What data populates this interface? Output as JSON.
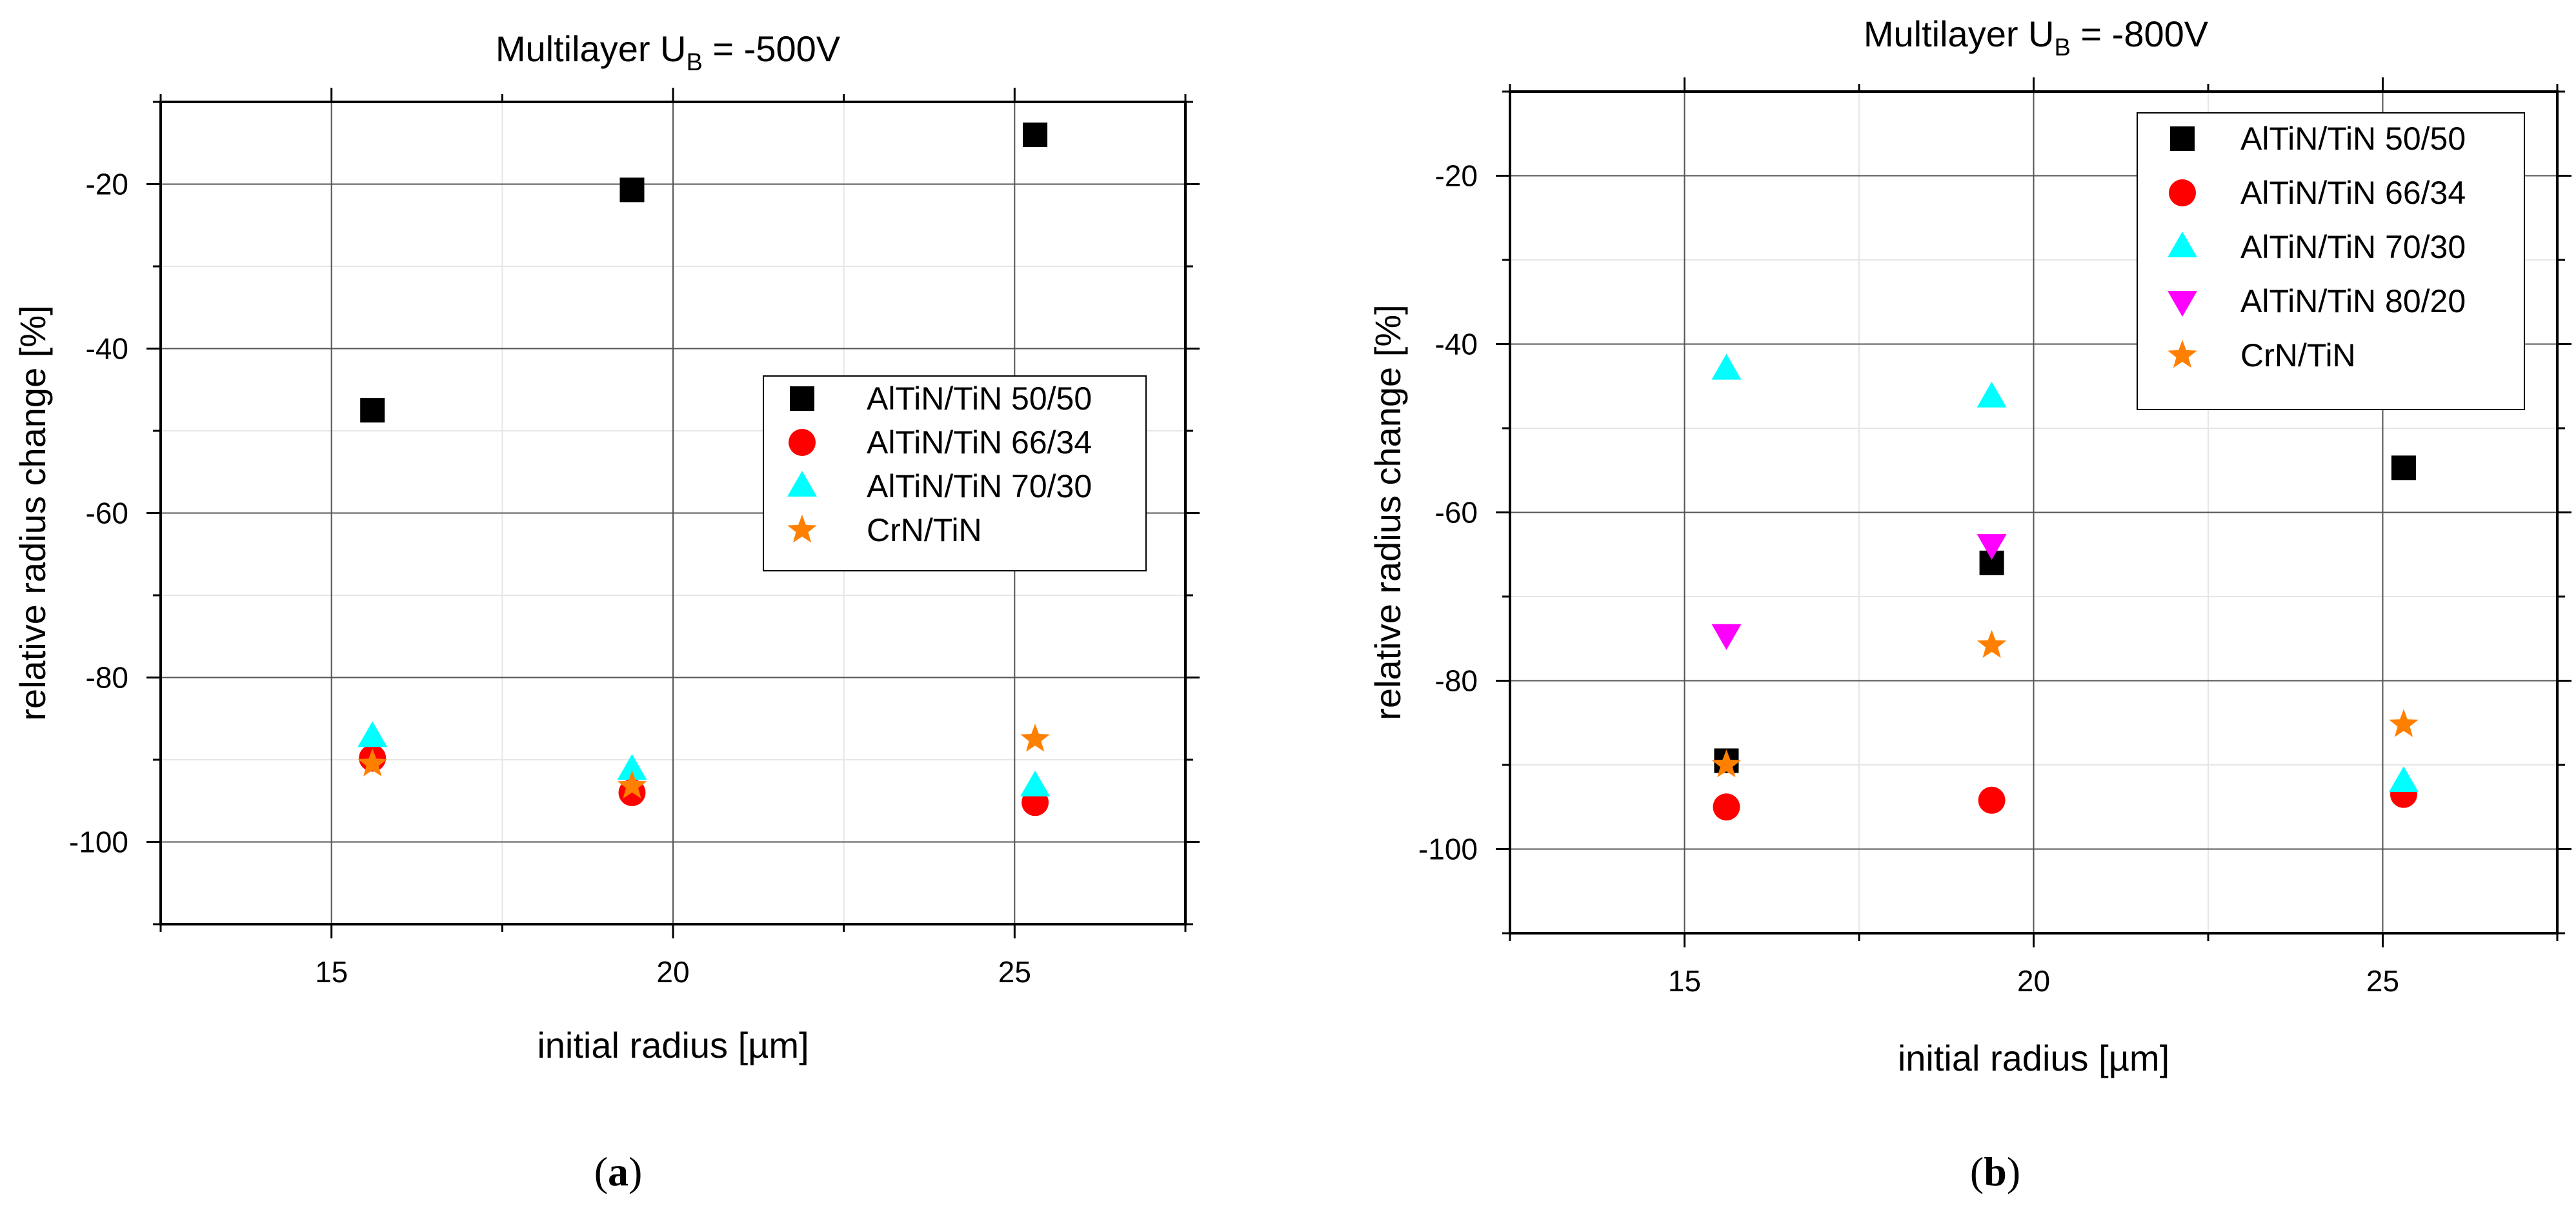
{
  "chart_data": [
    {
      "type": "scatter",
      "panel": "a",
      "caption_letter": "a",
      "title": "Multilayer U",
      "title_sub": "B",
      "title_rest": " = -500V",
      "xlabel": "initial radius [µm]",
      "ylabel": "relative radius change [%]",
      "xlim": [
        12.5,
        27.5
      ],
      "ylim": [
        -110,
        -10
      ],
      "xticks": [
        15,
        20,
        25
      ],
      "yticks": [
        -20,
        -40,
        -60,
        -80,
        -100
      ],
      "legend_position": "center-right",
      "series": [
        {
          "name": "AlTiN/TiN 50/50",
          "marker": "square",
          "color": "#000000",
          "x": [
            15.6,
            19.4,
            25.3
          ],
          "y": [
            -47.5,
            -20.7,
            -14.0
          ]
        },
        {
          "name": "AlTiN/TiN 66/34",
          "marker": "circle",
          "color": "#ff0000",
          "x": [
            15.6,
            19.4,
            25.3
          ],
          "y": [
            -89.8,
            -94.0,
            -95.2
          ]
        },
        {
          "name": "AlTiN/TiN 70/30",
          "marker": "triangle-up",
          "color": "#00ffff",
          "x": [
            15.6,
            19.4,
            25.3
          ],
          "y": [
            -87.2,
            -91.2,
            -93.2
          ]
        },
        {
          "name": "CrN/TiN",
          "marker": "star",
          "color": "#ff8000",
          "x": [
            15.6,
            19.4,
            25.3
          ],
          "y": [
            -90.5,
            -93.2,
            -87.5
          ]
        }
      ]
    },
    {
      "type": "scatter",
      "panel": "b",
      "caption_letter": "b",
      "title": "Multilayer U",
      "title_sub": "B",
      "title_rest": " = -800V",
      "xlabel": "initial radius [µm]",
      "ylabel": "relative radius change [%]",
      "xlim": [
        12.5,
        27.5
      ],
      "ylim": [
        -110,
        -10
      ],
      "xticks": [
        15,
        20,
        25
      ],
      "yticks": [
        -20,
        -40,
        -60,
        -80,
        -100
      ],
      "legend_position": "top-right",
      "series": [
        {
          "name": "AlTiN/TiN 50/50",
          "marker": "square",
          "color": "#000000",
          "x": [
            15.6,
            19.4,
            25.3
          ],
          "y": [
            -89.5,
            -66.0,
            -54.7
          ]
        },
        {
          "name": "AlTiN/TiN 66/34",
          "marker": "circle",
          "color": "#ff0000",
          "x": [
            15.6,
            19.4,
            25.3
          ],
          "y": [
            -95.0,
            -94.2,
            -93.5
          ]
        },
        {
          "name": "AlTiN/TiN 70/30",
          "marker": "triangle-up",
          "color": "#00ffff",
          "x": [
            15.6,
            19.4,
            25.3
          ],
          "y": [
            -43.0,
            -46.3,
            -92.0
          ]
        },
        {
          "name": "AlTiN/TiN 80/20",
          "marker": "triangle-down",
          "color": "#ff00ff",
          "x": [
            15.6,
            19.4
          ],
          "y": [
            -74.5,
            -63.8
          ]
        },
        {
          "name": "CrN/TiN",
          "marker": "star",
          "color": "#ff8000",
          "x": [
            15.6,
            19.4,
            25.3
          ],
          "y": [
            -90.0,
            -75.8,
            -85.2
          ]
        }
      ]
    }
  ]
}
